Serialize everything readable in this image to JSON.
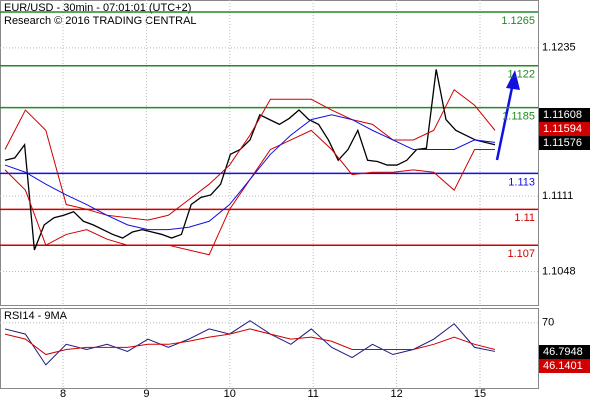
{
  "chart_data": [
    {
      "type": "line",
      "title": "EUR/USD - 30min - 07:01:01 (UTC+2)",
      "subtitle": "Research © 2016 TRADING CENTRAL",
      "x_labels": [
        "8",
        "9",
        "10",
        "11",
        "12",
        "15"
      ],
      "ylim": [
        1.102,
        1.1275
      ],
      "yticks": [
        1.1235,
        1.1111,
        1.1048
      ],
      "grid": true,
      "levels": [
        {
          "value": 1.1265,
          "color": "#228b22"
        },
        {
          "value": 1.122,
          "color": "#228b22"
        },
        {
          "value": 1.1185,
          "color": "#228b22"
        },
        {
          "value": 1.113,
          "color": "#1010e0"
        },
        {
          "value": 1.11,
          "color": "#d00000"
        },
        {
          "value": 1.107,
          "color": "#d00000"
        }
      ],
      "last_values": [
        {
          "value": 1.11608,
          "color": "#000000"
        },
        {
          "value": 1.11594,
          "color": "#d00000"
        },
        {
          "value": 1.11576,
          "color": "#000000"
        }
      ],
      "series": [
        {
          "color": "#000000",
          "values": [
            1.1141,
            1.1143,
            1.1154,
            1.1066,
            1.1087,
            1.1093,
            1.1095,
            1.1098,
            1.109,
            1.1087,
            1.1083,
            1.1079,
            1.1076,
            1.1081,
            1.1083,
            1.1081,
            1.1079,
            1.1076,
            1.1079,
            1.1104,
            1.111,
            1.1112,
            1.1121,
            1.1146,
            1.115,
            1.1158,
            1.1179,
            1.1175,
            1.1171,
            1.1176,
            1.1183,
            1.1175,
            1.1171,
            1.1158,
            1.1141,
            1.115,
            1.1166,
            1.1141,
            1.114,
            1.1137,
            1.1137,
            1.1141,
            1.115,
            1.1151,
            1.1217,
            1.1175,
            1.1166,
            1.1162,
            1.1158,
            1.1156,
            1.1154
          ]
        },
        {
          "color": "#d00000",
          "values": [
            1.115,
            1.1183,
            1.1166,
            1.1104,
            1.11,
            1.1095,
            1.1093,
            1.1091,
            1.1095,
            1.1108,
            1.1121,
            1.1137,
            1.1162,
            1.1192,
            1.1192,
            1.1192,
            1.1183,
            1.1175,
            1.1171,
            1.1158,
            1.1158,
            1.1166,
            1.12,
            1.1187,
            1.1166
          ]
        },
        {
          "color": "#d00000",
          "values": [
            1.1133,
            1.1116,
            1.107,
            1.1079,
            1.1083,
            1.1075,
            1.107,
            1.107,
            1.107,
            1.1066,
            1.1062,
            1.11,
            1.1125,
            1.115,
            1.1158,
            1.1166,
            1.115,
            1.1129,
            1.1131,
            1.1131,
            1.1133,
            1.1131,
            1.1116,
            1.115,
            1.115
          ]
        },
        {
          "color": "#1010e0",
          "values": [
            1.1137,
            1.1131,
            1.1121,
            1.1112,
            1.1104,
            1.1095,
            1.1087,
            1.1083,
            1.1083,
            1.1085,
            1.109,
            1.1104,
            1.1125,
            1.1146,
            1.1162,
            1.1175,
            1.1179,
            1.1175,
            1.1166,
            1.1158,
            1.115,
            1.115,
            1.115,
            1.1158,
            1.1156
          ]
        }
      ]
    },
    {
      "type": "line",
      "title": "RSI14 - 9MA",
      "ylim": [
        17,
        82
      ],
      "yticks": [
        70
      ],
      "grid": true,
      "last_values": [
        {
          "value": 46.7948,
          "color": "#000000"
        },
        {
          "value": 46.1401,
          "color": "#d00000"
        }
      ],
      "series": [
        {
          "color": "#1a1a80",
          "values": [
            65,
            60.8,
            35.8,
            52.5,
            48.3,
            52.5,
            46.7,
            56.7,
            50,
            56.7,
            65,
            60.8,
            71.7,
            60.8,
            52.5,
            65,
            50,
            41.7,
            52.5,
            44.2,
            48.3,
            56.7,
            69.2,
            50,
            46.7
          ]
        },
        {
          "color": "#d00000",
          "values": [
            60.8,
            56.7,
            44.2,
            48.3,
            50,
            50,
            50,
            52.5,
            52.5,
            55,
            58.3,
            60.8,
            65,
            60.8,
            56.7,
            58.3,
            55,
            48.3,
            48.3,
            48.3,
            48.3,
            52.5,
            58.3,
            52.5,
            48.3
          ]
        }
      ]
    }
  ]
}
